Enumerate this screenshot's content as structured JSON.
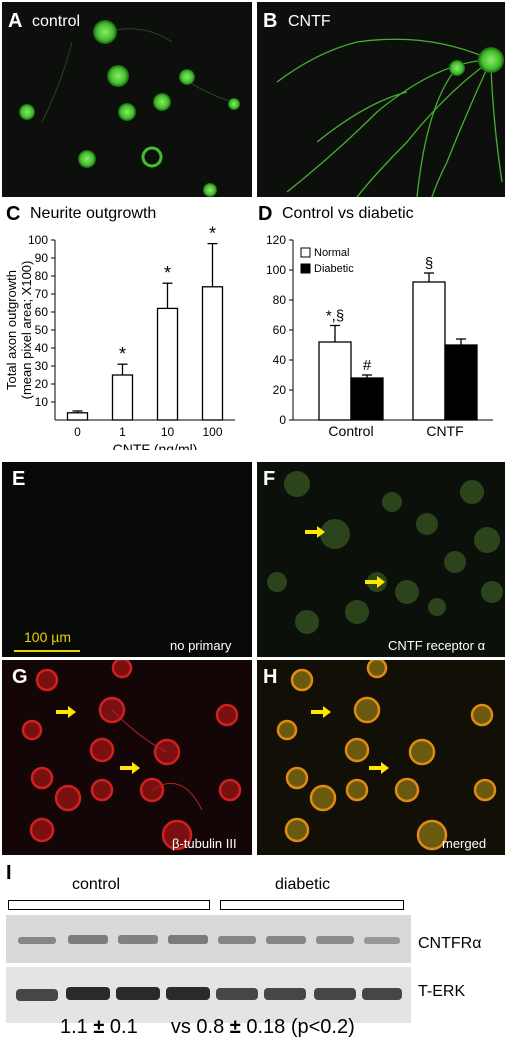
{
  "panels": {
    "A": {
      "letter": "A",
      "caption": "control"
    },
    "B": {
      "letter": "B",
      "caption": "CNTF"
    },
    "C": {
      "letter": "C",
      "title": "Neurite outgrowth"
    },
    "D": {
      "letter": "D",
      "title": "Control vs diabetic"
    },
    "E": {
      "letter": "E",
      "caption": "no primary",
      "scalebar": "100 µm"
    },
    "F": {
      "letter": "F",
      "caption": "CNTF receptor α"
    },
    "G": {
      "letter": "G",
      "caption": "β-tubulin III"
    },
    "H": {
      "letter": "H",
      "caption": "merged"
    },
    "I": {
      "letter": "I"
    }
  },
  "chart_data": [
    {
      "type": "bar",
      "panel": "C",
      "title": "Neurite outgrowth",
      "categories": [
        "0",
        "1",
        "10",
        "100"
      ],
      "values": [
        4,
        25,
        62,
        74
      ],
      "errors": [
        1,
        6,
        14,
        24
      ],
      "significance": [
        "",
        "*",
        "*",
        "*"
      ],
      "xlabel": "CNTF (ng/ml)",
      "ylabel_lines": [
        "Total axon outgrowth",
        "(mean pixel area; X100)"
      ],
      "ylim": [
        0,
        100
      ],
      "yticks": [
        10,
        20,
        30,
        40,
        50,
        60,
        70,
        80,
        90,
        100
      ]
    },
    {
      "type": "bar",
      "panel": "D",
      "title": "Control vs diabetic",
      "categories": [
        "Control",
        "CNTF"
      ],
      "series": [
        {
          "name": "Normal",
          "values": [
            52,
            92
          ],
          "errors": [
            11,
            6
          ],
          "marks": [
            "*,§",
            "§"
          ],
          "color": "#ffffff"
        },
        {
          "name": "Diabetic",
          "values": [
            28,
            50
          ],
          "errors": [
            2,
            4
          ],
          "marks": [
            "#",
            ""
          ],
          "color": "#000000"
        }
      ],
      "ylim": [
        0,
        120
      ],
      "yticks": [
        0,
        20,
        40,
        60,
        80,
        100,
        120
      ]
    }
  ],
  "blot": {
    "groups": [
      "control",
      "diabetic"
    ],
    "row_labels": [
      "CNTFRα",
      "T-ERK"
    ],
    "quant": {
      "control_mean": "1.1",
      "control_err": "0.1",
      "vs": "vs",
      "diabetic_mean": "0.8",
      "diabetic_err": "0.18",
      "pval": "(p<0.2)",
      "pm": "±"
    }
  }
}
